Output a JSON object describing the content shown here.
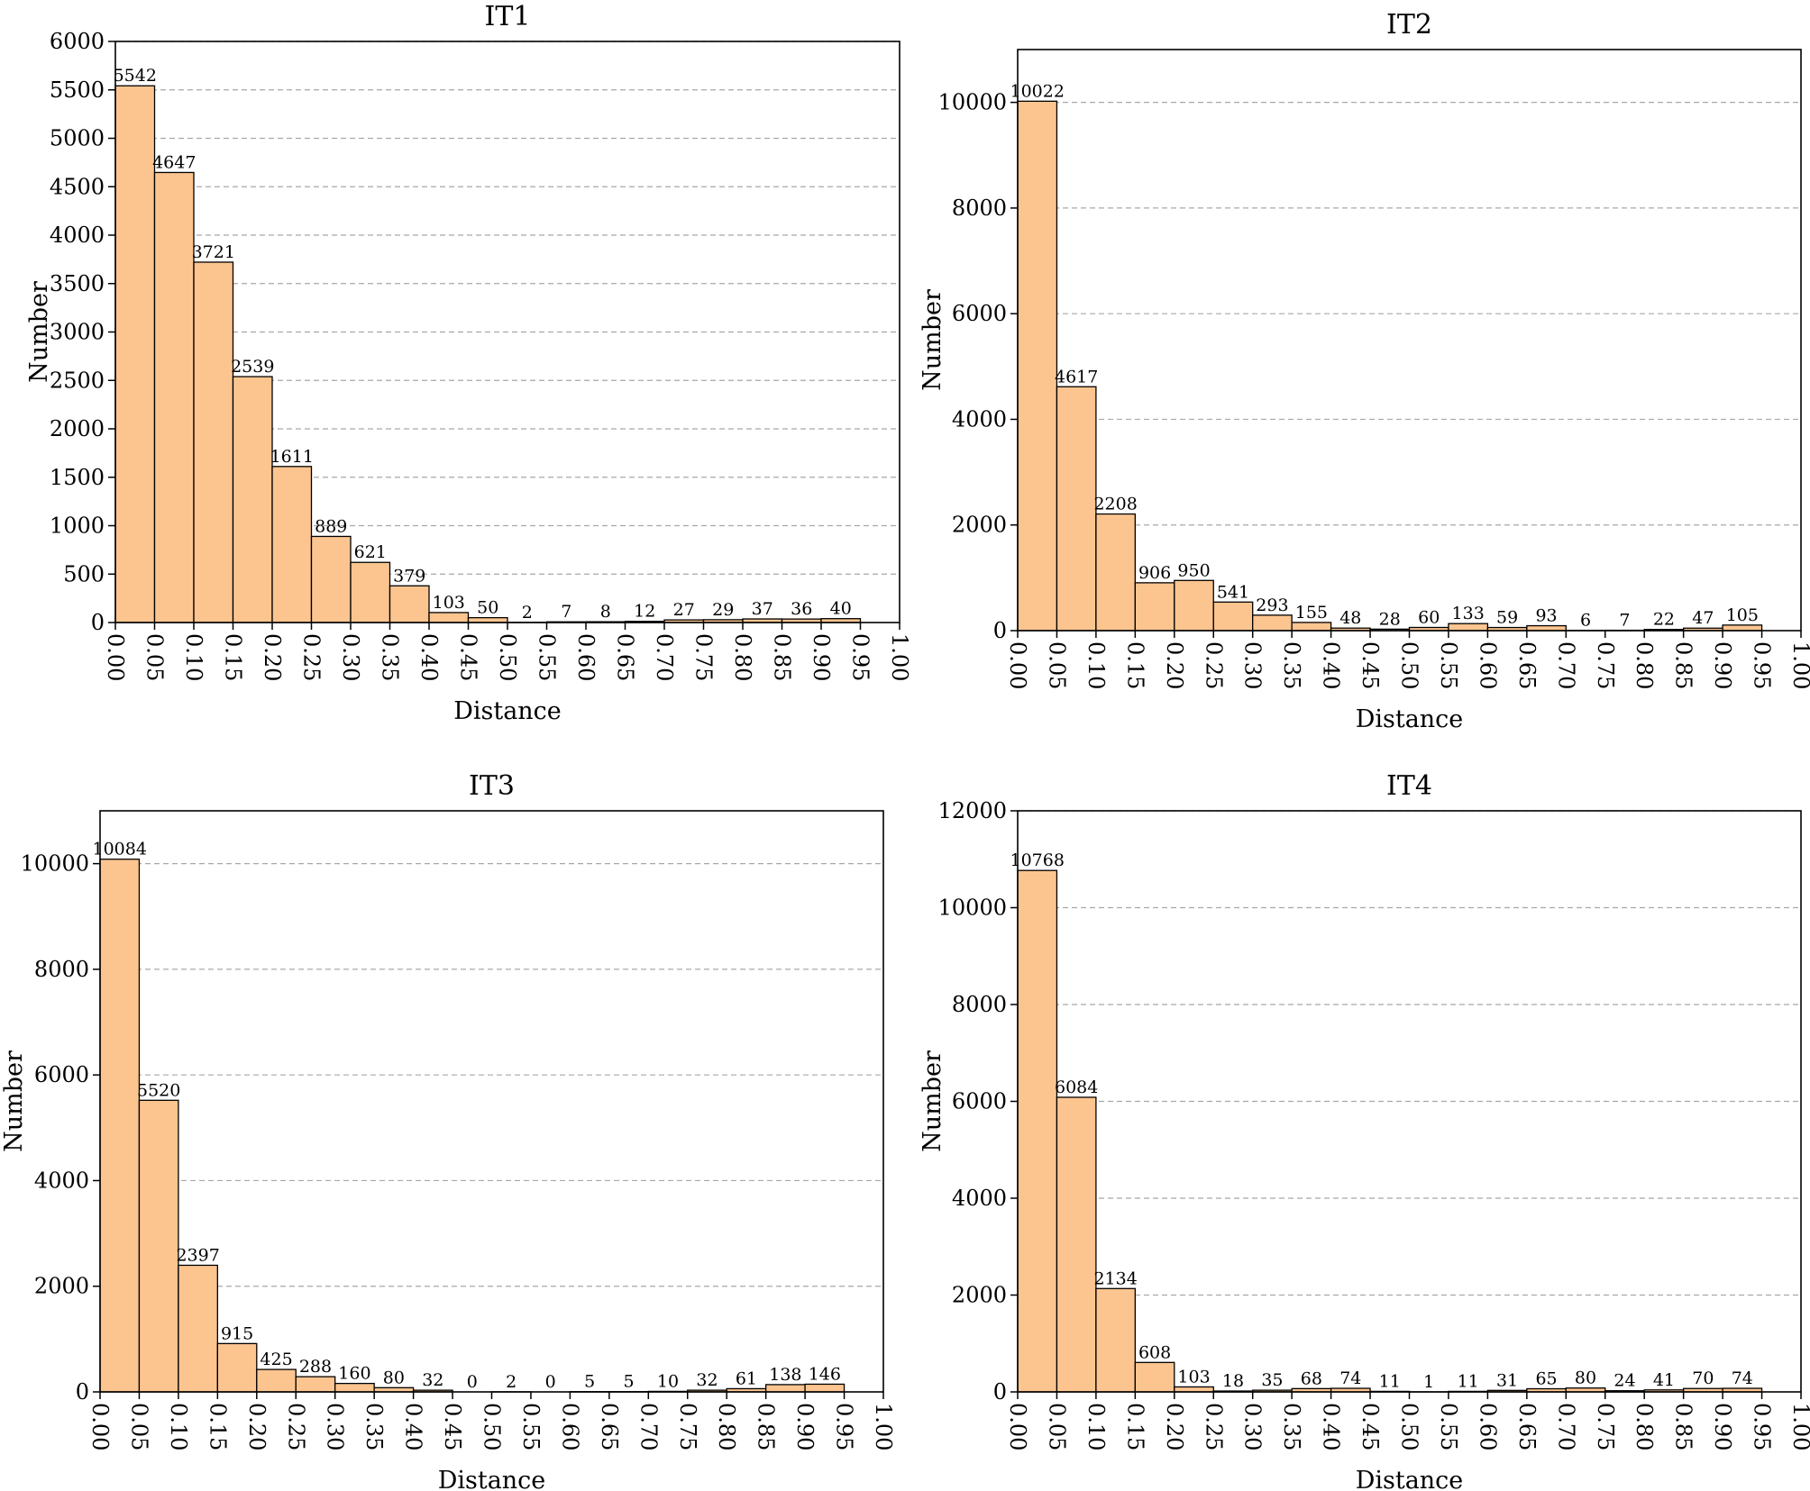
{
  "chart_data": [
    {
      "type": "bar",
      "title": "IT1",
      "xlabel": "Distance",
      "ylabel": "Number",
      "ylim": [
        0,
        6000
      ],
      "yticks": [
        0,
        500,
        1000,
        1500,
        2000,
        2500,
        3000,
        3500,
        4000,
        4500,
        5000,
        5500,
        6000
      ],
      "xticks": [
        "0.00",
        "0.05",
        "0.10",
        "0.15",
        "0.20",
        "0.25",
        "0.30",
        "0.35",
        "0.40",
        "0.45",
        "0.50",
        "0.55",
        "0.60",
        "0.65",
        "0.70",
        "0.75",
        "0.80",
        "0.85",
        "0.90",
        "0.95",
        "1.00"
      ],
      "values": [
        5542,
        4647,
        3721,
        2539,
        1611,
        889,
        621,
        379,
        103,
        50,
        2,
        7,
        8,
        12,
        27,
        29,
        37,
        36,
        40
      ]
    },
    {
      "type": "bar",
      "title": "IT2",
      "xlabel": "Distance",
      "ylabel": "Number",
      "ylim": [
        0,
        11000
      ],
      "yticks": [
        0,
        2000,
        4000,
        6000,
        8000,
        10000
      ],
      "xticks": [
        "0.00",
        "0.05",
        "0.10",
        "0.15",
        "0.20",
        "0.25",
        "0.30",
        "0.35",
        "0.40",
        "0.45",
        "0.50",
        "0.55",
        "0.60",
        "0.65",
        "0.70",
        "0.75",
        "0.80",
        "0.85",
        "0.90",
        "0.95",
        "1.00"
      ],
      "values": [
        10022,
        4617,
        2208,
        906,
        950,
        541,
        293,
        155,
        48,
        28,
        60,
        133,
        59,
        93,
        6,
        7,
        22,
        47,
        105
      ]
    },
    {
      "type": "bar",
      "title": "IT3",
      "xlabel": "Distance",
      "ylabel": "Number",
      "ylim": [
        0,
        11000
      ],
      "yticks": [
        0,
        2000,
        4000,
        6000,
        8000,
        10000
      ],
      "xticks": [
        "0.00",
        "0.05",
        "0.10",
        "0.15",
        "0.20",
        "0.25",
        "0.30",
        "0.35",
        "0.40",
        "0.45",
        "0.50",
        "0.55",
        "0.60",
        "0.65",
        "0.70",
        "0.75",
        "0.80",
        "0.85",
        "0.90",
        "0.95",
        "1.00"
      ],
      "values": [
        10084,
        5520,
        2397,
        915,
        425,
        288,
        160,
        80,
        32,
        0,
        2,
        0,
        5,
        5,
        10,
        32,
        61,
        138,
        146
      ]
    },
    {
      "type": "bar",
      "title": "IT4",
      "xlabel": "Distance",
      "ylabel": "Number",
      "ylim": [
        0,
        12000
      ],
      "yticks": [
        0,
        2000,
        4000,
        6000,
        8000,
        10000,
        12000
      ],
      "xticks": [
        "0.00",
        "0.05",
        "0.10",
        "0.15",
        "0.20",
        "0.25",
        "0.30",
        "0.35",
        "0.40",
        "0.45",
        "0.50",
        "0.55",
        "0.60",
        "0.65",
        "0.70",
        "0.75",
        "0.80",
        "0.85",
        "0.90",
        "0.95",
        "1.00"
      ],
      "values": [
        10768,
        6084,
        2134,
        608,
        103,
        18,
        35,
        68,
        74,
        11,
        1,
        11,
        31,
        65,
        80,
        24,
        41,
        70,
        74
      ]
    }
  ]
}
